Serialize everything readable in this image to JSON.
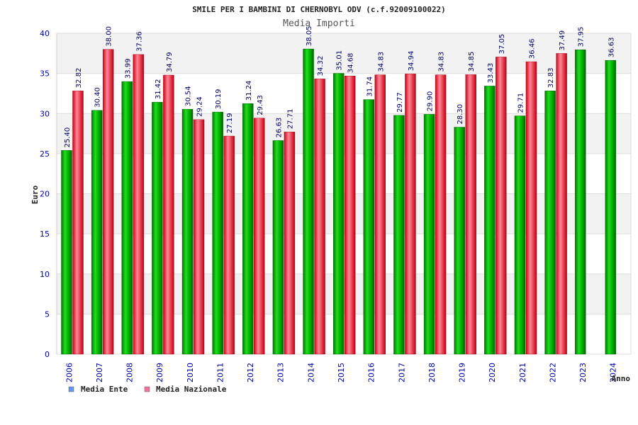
{
  "chart_data": {
    "type": "bar",
    "title": "SMILE PER I BAMBINI DI CHERNOBYL ODV (c.f.92009100022)",
    "subtitle": "Media Importi",
    "xlabel": "Anno",
    "ylabel": "Euro",
    "ylim": [
      0,
      40
    ],
    "yticks": [
      "0",
      "5",
      "10",
      "15",
      "20",
      "25",
      "30",
      "35",
      "40"
    ],
    "grid": true,
    "legend_position": "bottom-left",
    "categories": [
      "2006",
      "2007",
      "2008",
      "2009",
      "2010",
      "2011",
      "2012",
      "2013",
      "2014",
      "2015",
      "2016",
      "2017",
      "2018",
      "2019",
      "2020",
      "2021",
      "2022",
      "2023",
      "2024"
    ],
    "series": [
      {
        "name": "Media Ente",
        "color": "#00bb00",
        "legend_color": "#6699ee",
        "values": [
          25.4,
          30.4,
          33.99,
          31.42,
          30.54,
          30.19,
          31.24,
          26.63,
          38.05,
          35.01,
          31.74,
          29.77,
          29.9,
          28.3,
          33.43,
          29.71,
          32.83,
          37.95,
          36.63
        ],
        "labels": [
          "25.40",
          "30.40",
          "33.99",
          "31.42",
          "30.54",
          "30.19",
          "31.24",
          "26.63",
          "38.05",
          "35.01",
          "31.74",
          "29.77",
          "29.90",
          "28.30",
          "33.43",
          "29.71",
          "32.83",
          "37.95",
          "36.63"
        ]
      },
      {
        "name": "Media Nazionale",
        "color": "#ee2233",
        "legend_color": "#ee7799",
        "values": [
          32.82,
          38.0,
          37.36,
          34.79,
          29.24,
          27.19,
          29.43,
          27.71,
          34.32,
          34.68,
          34.83,
          34.94,
          34.83,
          34.85,
          37.05,
          36.46,
          37.49,
          null,
          null
        ],
        "labels": [
          "32.82",
          "38.00",
          "37.36",
          "34.79",
          "29.24",
          "27.19",
          "29.43",
          "27.71",
          "34.32",
          "34.68",
          "34.83",
          "34.94",
          "34.83",
          "34.85",
          "37.05",
          "36.46",
          "37.49",
          null,
          null
        ]
      }
    ]
  }
}
